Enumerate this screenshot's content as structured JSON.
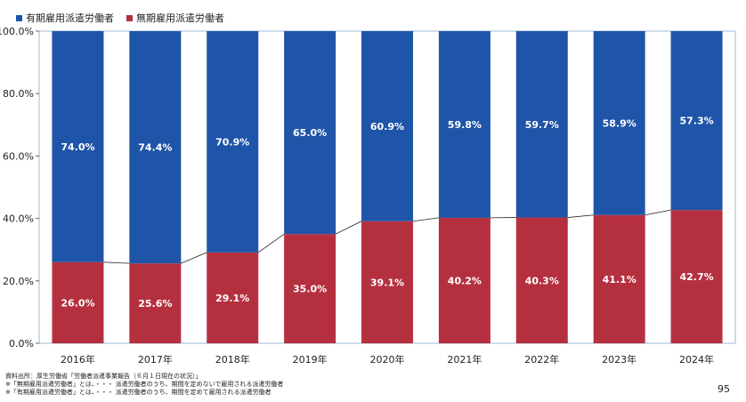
{
  "chart_data": {
    "type": "bar",
    "stacked": true,
    "categories": [
      "2016年",
      "2017年",
      "2018年",
      "2019年",
      "2020年",
      "2021年",
      "2022年",
      "2023年",
      "2024年"
    ],
    "series": [
      {
        "name": "有期雇用派遣労働者",
        "color": "#1f55a8",
        "values": [
          74.0,
          74.4,
          70.9,
          65.0,
          60.9,
          59.8,
          59.7,
          58.9,
          57.3
        ],
        "labels": [
          "74.0%",
          "74.4%",
          "70.9%",
          "65.0%",
          "60.9%",
          "59.8%",
          "59.7%",
          "58.9%",
          "57.3%"
        ]
      },
      {
        "name": "無期雇用派遣労働者",
        "color": "#b5303f",
        "values": [
          26.0,
          25.6,
          29.1,
          35.0,
          39.1,
          40.2,
          40.3,
          41.1,
          42.7
        ],
        "labels": [
          "26.0%",
          "25.6%",
          "29.1%",
          "35.0%",
          "39.1%",
          "40.2%",
          "40.3%",
          "41.1%",
          "42.7%"
        ]
      }
    ],
    "ylim": [
      0,
      100
    ],
    "yticks": [
      0,
      20,
      40,
      60,
      80,
      100
    ],
    "ytick_labels": [
      "0.0%",
      "20.0%",
      "40.0%",
      "60.0%",
      "80.0%",
      "100.0%"
    ],
    "connector_lines": true,
    "legend_position": "top-left"
  },
  "notes": [
    "資料出所：厚生労働省「労働者派遣事業報告（６月１日現在の状況）」",
    "※「無期雇用派遣労働者」とは、・・・ 派遣労働者のうち、期間を定めないで雇用される派遣労働者",
    "※「有期雇用派遣労働者」とは、・・・ 派遣労働者のうち、期間を定めて雇用される派遣労働者"
  ],
  "page_number": "95"
}
